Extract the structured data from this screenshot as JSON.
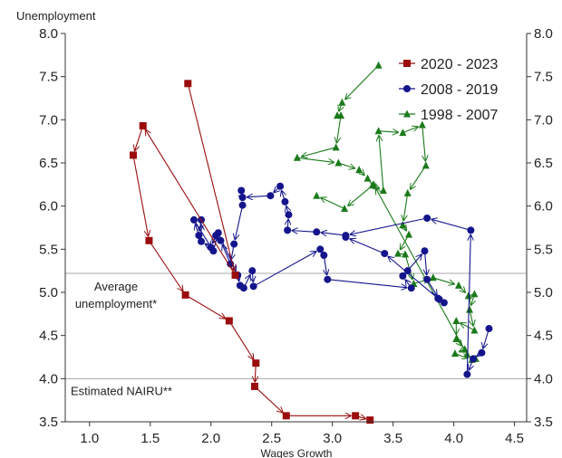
{
  "chart_data": {
    "type": "line",
    "xlabel": "Wages Growth",
    "ylabel": "Unemployment",
    "xlim": [
      0.8,
      4.6
    ],
    "ylim": [
      3.5,
      8.0
    ],
    "x_ticks": [
      "1.0",
      "1.5",
      "2.0",
      "2.5",
      "3.0",
      "3.5",
      "4.0",
      "4.5"
    ],
    "y_ticks": [
      "3.5",
      "4.0",
      "4.5",
      "5.0",
      "5.5",
      "6.0",
      "6.5",
      "7.0",
      "7.5",
      "8.0"
    ],
    "hlines": [
      {
        "y": 5.22,
        "label_lines": [
          "Average",
          "unemployment*"
        ]
      },
      {
        "y": 4.0,
        "label_lines": [
          "Estimated NAIRU**"
        ]
      }
    ],
    "legend": {
      "position": "top-right",
      "entries": [
        {
          "name": "2020 - 2023",
          "color": "#9b0d0d",
          "marker": "square"
        },
        {
          "name": "2008 - 2019",
          "color": "#14148c",
          "marker": "circle"
        },
        {
          "name": "1998 - 2007",
          "color": "#1a7a1a",
          "marker": "triangle"
        }
      ]
    },
    "series": [
      {
        "name": "1998 - 2007",
        "color": "#1a7a1a",
        "marker": "triangle",
        "points": [
          [
            3.38,
            7.63
          ],
          [
            3.08,
            7.2
          ],
          [
            3.04,
            7.05
          ],
          [
            3.07,
            7.05
          ],
          [
            3.03,
            6.68
          ],
          [
            2.71,
            6.56
          ],
          [
            3.05,
            6.5
          ],
          [
            3.22,
            6.42
          ],
          [
            3.29,
            6.32
          ],
          [
            3.33,
            6.24
          ],
          [
            3.42,
            6.18
          ],
          [
            3.38,
            6.87
          ],
          [
            3.58,
            6.85
          ],
          [
            3.74,
            6.94
          ],
          [
            3.77,
            6.47
          ],
          [
            3.62,
            6.15
          ],
          [
            3.58,
            5.78
          ],
          [
            3.63,
            5.67
          ],
          [
            3.54,
            5.45
          ],
          [
            3.6,
            5.44
          ],
          [
            3.67,
            5.1
          ],
          [
            3.83,
            5.17
          ],
          [
            4.04,
            5.08
          ],
          [
            4.12,
            4.96
          ],
          [
            4.17,
            4.98
          ],
          [
            4.13,
            4.8
          ],
          [
            4.17,
            4.56
          ],
          [
            4.02,
            4.67
          ],
          [
            4.02,
            4.46
          ],
          [
            4.09,
            4.34
          ],
          [
            4.01,
            4.29
          ],
          [
            4.15,
            4.22
          ],
          [
            4.18,
            4.23
          ],
          [
            4.11,
            4.28
          ],
          [
            3.34,
            6.25
          ],
          [
            3.1,
            5.97
          ],
          [
            2.87,
            6.12
          ]
        ]
      },
      {
        "name": "2008 - 2019",
        "color": "#14148c",
        "marker": "circle",
        "points": [
          [
            4.29,
            4.58
          ],
          [
            4.23,
            4.3
          ],
          [
            4.16,
            4.23
          ],
          [
            4.11,
            4.05
          ],
          [
            4.14,
            5.72
          ],
          [
            3.78,
            5.86
          ],
          [
            3.11,
            5.66
          ],
          [
            2.87,
            5.7
          ],
          [
            2.63,
            5.72
          ],
          [
            2.64,
            5.9
          ],
          [
            2.61,
            6.05
          ],
          [
            2.57,
            6.23
          ],
          [
            2.49,
            6.12
          ],
          [
            2.26,
            6.1
          ],
          [
            2.25,
            6.18
          ],
          [
            2.26,
            6.01
          ],
          [
            2.19,
            5.56
          ],
          [
            2.16,
            5.33
          ],
          [
            2.08,
            5.6
          ],
          [
            2.04,
            5.66
          ],
          [
            2.0,
            5.52
          ],
          [
            1.92,
            5.59
          ],
          [
            1.92,
            5.84
          ],
          [
            1.9,
            5.66
          ],
          [
            1.86,
            5.84
          ],
          [
            2.02,
            5.48
          ],
          [
            2.06,
            5.69
          ],
          [
            2.22,
            5.2
          ],
          [
            2.24,
            5.08
          ],
          [
            2.27,
            5.05
          ],
          [
            2.34,
            5.25
          ],
          [
            2.35,
            5.07
          ],
          [
            2.9,
            5.5
          ],
          [
            2.93,
            5.43
          ],
          [
            2.96,
            5.15
          ],
          [
            3.65,
            5.05
          ],
          [
            3.58,
            5.19
          ],
          [
            3.62,
            5.25
          ],
          [
            3.76,
            5.48
          ],
          [
            3.78,
            5.15
          ],
          [
            3.88,
            4.92
          ],
          [
            3.92,
            4.88
          ],
          [
            3.87,
            4.93
          ],
          [
            3.43,
            5.45
          ],
          [
            3.11,
            5.64
          ]
        ]
      },
      {
        "name": "2020 - 2023",
        "color": "#9b0d0d",
        "marker": "square",
        "points": [
          [
            1.81,
            7.42
          ],
          [
            2.2,
            5.2
          ],
          [
            1.44,
            6.93
          ],
          [
            1.36,
            6.59
          ],
          [
            1.49,
            5.6
          ],
          [
            1.79,
            4.97
          ],
          [
            2.15,
            4.67
          ],
          [
            2.37,
            4.18
          ],
          [
            2.36,
            3.91
          ],
          [
            2.62,
            3.57
          ],
          [
            3.19,
            3.57
          ],
          [
            3.31,
            3.52
          ]
        ]
      }
    ]
  }
}
